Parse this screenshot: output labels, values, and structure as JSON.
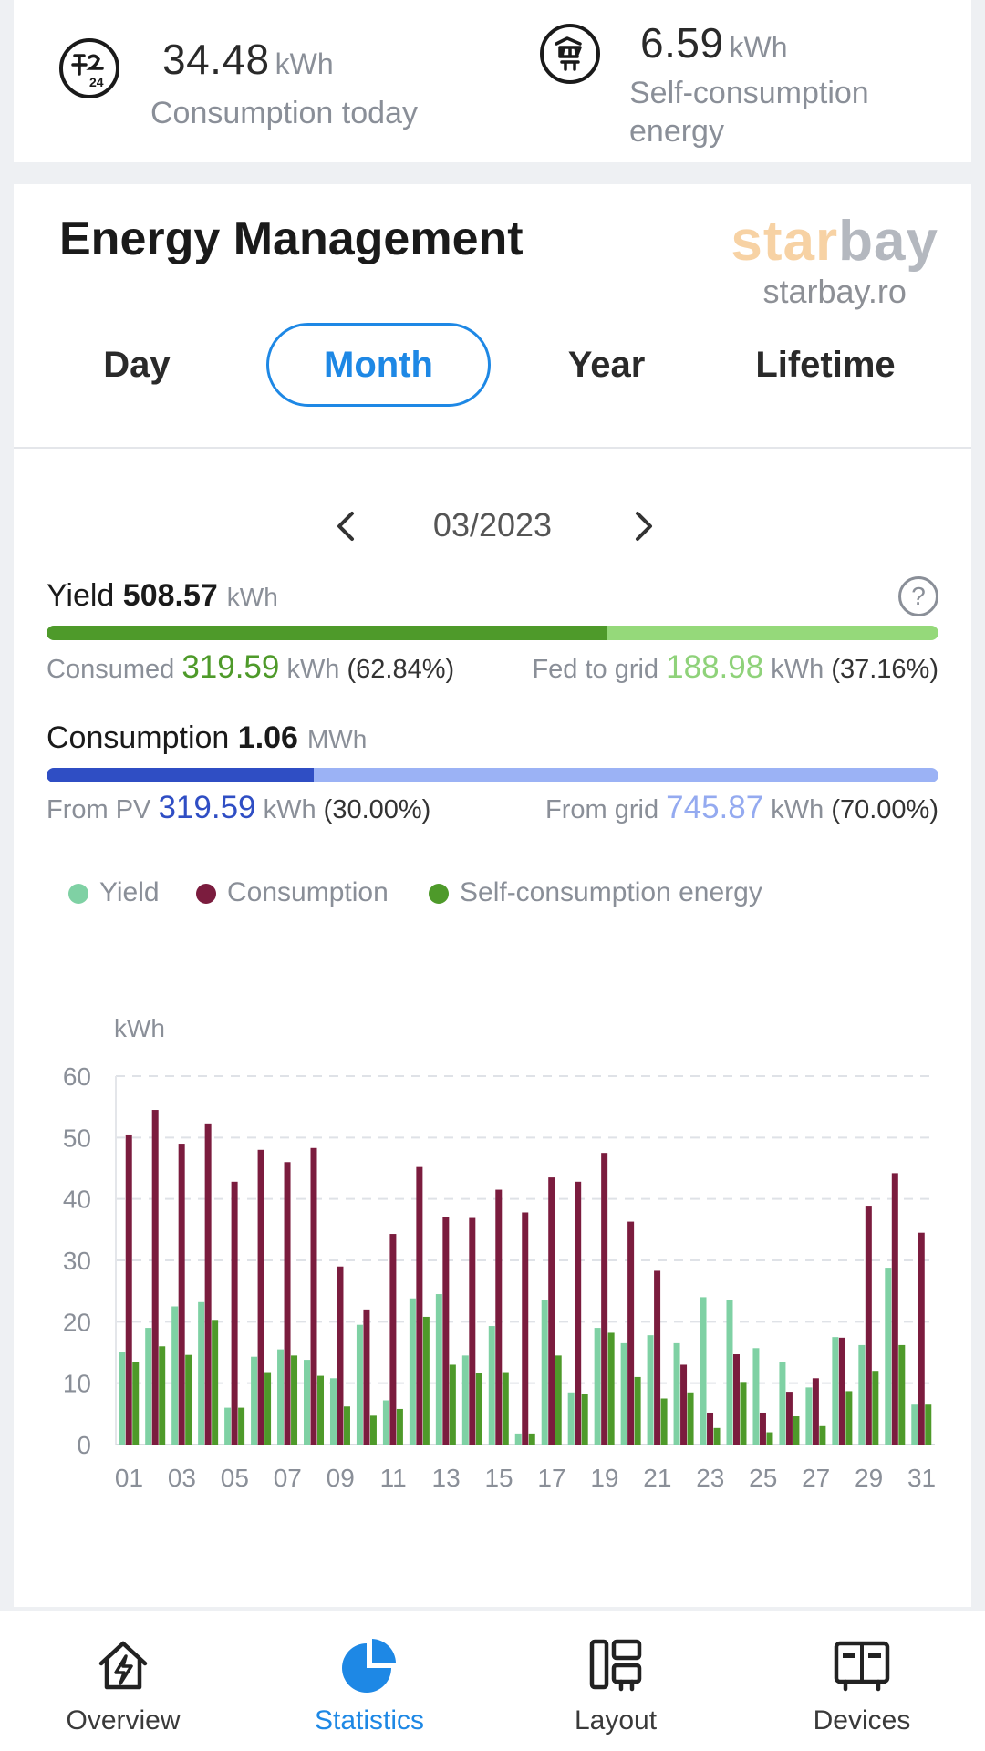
{
  "summary": {
    "consumption_today": {
      "value": "34.48",
      "unit": "kWh",
      "label": "Consumption today",
      "icon": "consumption-24h-icon"
    },
    "self_consumption": {
      "value": "6.59",
      "unit": "kWh",
      "label_line1": "Self-consumption",
      "label_line2": "energy",
      "icon": "self-consumption-icon"
    }
  },
  "card": {
    "title": "Energy Management",
    "watermark": {
      "star": "star",
      "bay": "bay",
      "url": "starbay.ro"
    }
  },
  "tabs": [
    {
      "label": "Day",
      "active": false
    },
    {
      "label": "Month",
      "active": true
    },
    {
      "label": "Year",
      "active": false
    },
    {
      "label": "Lifetime",
      "active": false
    }
  ],
  "period": {
    "label": "03/2023"
  },
  "yield": {
    "label": "Yield",
    "value": "508.57",
    "unit": "kWh",
    "consumed_label": "Consumed",
    "consumed_value": "319.59",
    "consumed_unit": "kWh",
    "consumed_pct": "(62.84%)",
    "fed_label": "Fed to grid",
    "fed_value": "188.98",
    "fed_unit": "kWh",
    "fed_pct": "(37.16%)",
    "consumed_fraction": 0.6284,
    "help": "?"
  },
  "consumption": {
    "label": "Consumption",
    "value": "1.06",
    "unit": "MWh",
    "pv_label": "From PV",
    "pv_value": "319.59",
    "pv_unit": "kWh",
    "pv_pct": "(30.00%)",
    "grid_label": "From grid",
    "grid_value": "745.87",
    "grid_unit": "kWh",
    "grid_pct": "(70.00%)",
    "pv_fraction": 0.3
  },
  "colors": {
    "yield": "#7fd1a4",
    "consumption": "#7b1c3e",
    "self": "#4e9a2a",
    "consumed_bar": "#4e9a2a",
    "fed_bar": "#95d97a",
    "pv_bar": "#2f4ec4",
    "grid_bar": "#9bb2f5",
    "consumed_text": "#4e9a2a",
    "fed_text": "#8fd27a",
    "pv_text": "#2f4ec4",
    "grid_text": "#94aaf0",
    "accent": "#1e88e5"
  },
  "legend": [
    {
      "name": "Yield",
      "color": "#7fd1a4"
    },
    {
      "name": "Consumption",
      "color": "#7b1c3e"
    },
    {
      "name": "Self-consumption energy",
      "color": "#4e9a2a"
    }
  ],
  "chart_data": {
    "type": "bar",
    "ylabel": "kWh",
    "ylim": [
      0,
      60
    ],
    "yticks": [
      0,
      10,
      20,
      30,
      40,
      50,
      60
    ],
    "categories": [
      "01",
      "02",
      "03",
      "04",
      "05",
      "06",
      "07",
      "08",
      "09",
      "10",
      "11",
      "12",
      "13",
      "14",
      "15",
      "16",
      "17",
      "18",
      "19",
      "20",
      "21",
      "22",
      "23",
      "24",
      "25",
      "26",
      "27",
      "28",
      "29",
      "30",
      "31"
    ],
    "xtick_labels": [
      "01",
      "03",
      "05",
      "07",
      "09",
      "11",
      "13",
      "15",
      "17",
      "19",
      "21",
      "23",
      "25",
      "27",
      "29",
      "31"
    ],
    "series": [
      {
        "name": "Yield",
        "values": [
          15,
          19,
          22.5,
          23.2,
          6,
          14.3,
          15.5,
          13.8,
          10.8,
          19.5,
          7.2,
          23.8,
          24.5,
          14.5,
          19.3,
          1.8,
          23.5,
          8.5,
          19,
          16.5,
          17.8,
          16.5,
          24,
          23.5,
          15.7,
          13.5,
          9.3,
          17.5,
          16.2,
          28.8,
          6.5
        ]
      },
      {
        "name": "Consumption",
        "values": [
          50.5,
          54.5,
          49,
          52.3,
          42.8,
          48,
          46,
          48.3,
          29,
          22,
          34.3,
          45.2,
          37,
          36.9,
          41.5,
          37.8,
          43.5,
          42.8,
          47.5,
          36.3,
          28.3,
          13,
          5.2,
          14.7,
          5.2,
          8.6,
          10.8,
          17.4,
          38.9,
          44.2,
          34.5
        ]
      },
      {
        "name": "Self-consumption energy",
        "values": [
          13.5,
          16,
          14.6,
          20.3,
          6,
          11.8,
          14.5,
          11.2,
          6.2,
          4.7,
          5.8,
          20.8,
          13,
          11.7,
          11.8,
          1.8,
          14.5,
          8.2,
          18.2,
          11,
          7.5,
          8.5,
          2.7,
          10.2,
          2,
          4.6,
          3,
          8.7,
          12,
          16.2,
          6.5
        ]
      }
    ]
  },
  "nav": [
    {
      "label": "Overview",
      "icon": "home-bolt-icon",
      "active": false
    },
    {
      "label": "Statistics",
      "icon": "pie-chart-icon",
      "active": true
    },
    {
      "label": "Layout",
      "icon": "layout-icon",
      "active": false
    },
    {
      "label": "Devices",
      "icon": "devices-icon",
      "active": false
    }
  ]
}
